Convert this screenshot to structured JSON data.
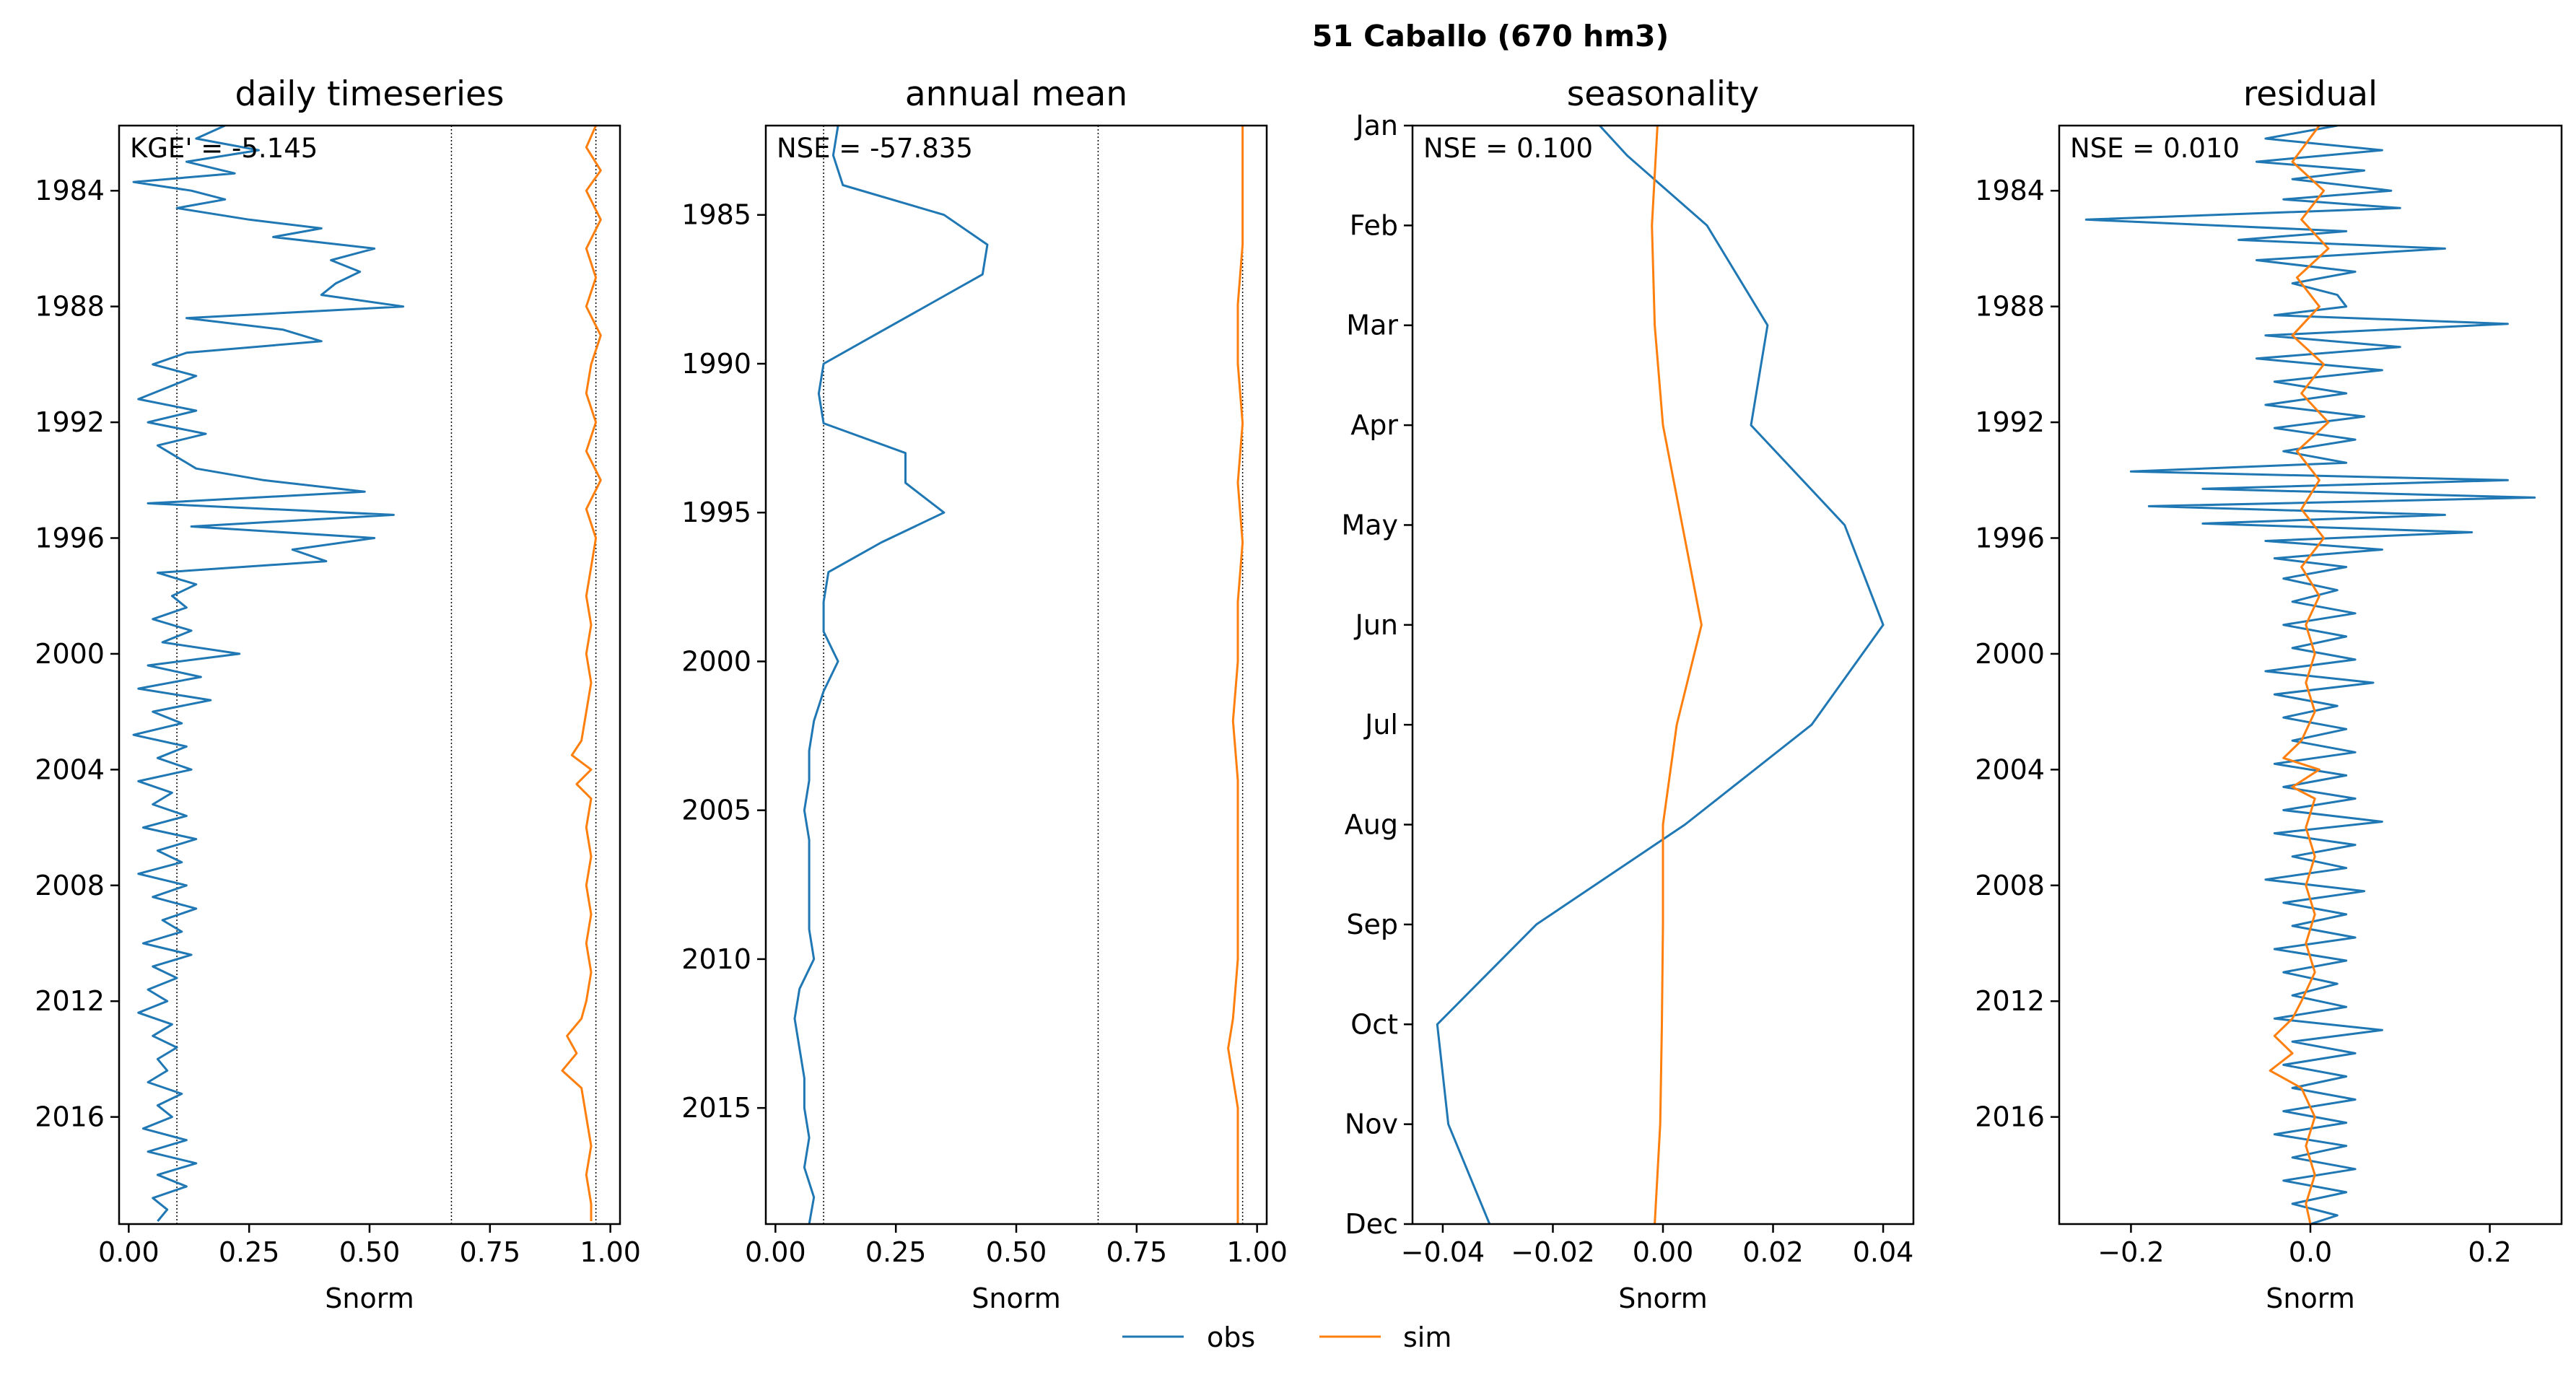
{
  "figure": {
    "title": "51  Caballo (670 hm3)",
    "legend": {
      "placement": "bottom-center",
      "entries": [
        "obs",
        "sim"
      ]
    },
    "colors": {
      "obs": "#1f77b4",
      "sim": "#ff7f0e",
      "ref": "#000000"
    }
  },
  "chart_data": [
    {
      "type": "line",
      "title": "daily timeseries",
      "xlabel": "Snorm",
      "ylabel": "",
      "annotation": "KGE' = -5.145",
      "xlim": [
        -0.02,
        1.02
      ],
      "ylim": [
        1981.75,
        2019.7
      ],
      "y_reversed": true,
      "y_is_date": true,
      "xticks": [
        0.0,
        0.25,
        0.5,
        0.75,
        1.0
      ],
      "xtick_labels": [
        "0.00",
        "0.25",
        "0.50",
        "0.75",
        "1.00"
      ],
      "yticks": [
        1984,
        1988,
        1992,
        1996,
        2000,
        2004,
        2008,
        2012,
        2016
      ],
      "ytick_labels": [
        "1984",
        "1988",
        "1992",
        "1996",
        "2000",
        "2004",
        "2008",
        "2012",
        "2016"
      ],
      "vlines": [
        0.1,
        0.67,
        0.97
      ],
      "series": [
        {
          "name": "obs",
          "y": [
            1981.75,
            1982.2,
            1982.6,
            1983.0,
            1983.4,
            1983.7,
            1984.0,
            1984.3,
            1984.6,
            1985.0,
            1985.3,
            1985.6,
            1986.0,
            1986.4,
            1986.8,
            1987.2,
            1987.6,
            1988.0,
            1988.4,
            1988.8,
            1989.2,
            1989.6,
            1990.0,
            1990.4,
            1990.8,
            1991.2,
            1991.6,
            1992.0,
            1992.4,
            1992.8,
            1993.2,
            1993.6,
            1994.0,
            1994.4,
            1994.8,
            1995.2,
            1995.6,
            1996.0,
            1996.4,
            1996.8,
            1997.2,
            1997.6,
            1998.0,
            1998.4,
            1998.8,
            1999.2,
            1999.6,
            2000.0,
            2000.4,
            2000.8,
            2001.2,
            2001.6,
            2002.0,
            2002.4,
            2002.8,
            2003.2,
            2003.6,
            2004.0,
            2004.4,
            2004.8,
            2005.2,
            2005.6,
            2006.0,
            2006.4,
            2006.8,
            2007.2,
            2007.6,
            2008.0,
            2008.4,
            2008.8,
            2009.2,
            2009.6,
            2010.0,
            2010.4,
            2010.8,
            2011.2,
            2011.6,
            2012.0,
            2012.4,
            2012.8,
            2013.2,
            2013.6,
            2014.0,
            2014.4,
            2014.8,
            2015.2,
            2015.6,
            2016.0,
            2016.4,
            2016.8,
            2017.2,
            2017.6,
            2018.0,
            2018.4,
            2018.8,
            2019.2,
            2019.6
          ],
          "x": [
            0.2,
            0.14,
            0.27,
            0.12,
            0.22,
            0.01,
            0.13,
            0.2,
            0.1,
            0.25,
            0.4,
            0.3,
            0.51,
            0.42,
            0.48,
            0.43,
            0.4,
            0.57,
            0.12,
            0.32,
            0.4,
            0.12,
            0.05,
            0.14,
            0.08,
            0.02,
            0.14,
            0.04,
            0.16,
            0.06,
            0.1,
            0.14,
            0.28,
            0.49,
            0.04,
            0.55,
            0.13,
            0.51,
            0.34,
            0.41,
            0.06,
            0.14,
            0.09,
            0.12,
            0.05,
            0.13,
            0.07,
            0.23,
            0.04,
            0.15,
            0.02,
            0.17,
            0.05,
            0.11,
            0.01,
            0.12,
            0.06,
            0.13,
            0.02,
            0.09,
            0.05,
            0.12,
            0.03,
            0.14,
            0.06,
            0.11,
            0.02,
            0.12,
            0.05,
            0.14,
            0.07,
            0.11,
            0.03,
            0.13,
            0.05,
            0.1,
            0.04,
            0.08,
            0.02,
            0.09,
            0.05,
            0.1,
            0.06,
            0.08,
            0.04,
            0.11,
            0.06,
            0.09,
            0.03,
            0.12,
            0.04,
            0.14,
            0.06,
            0.12,
            0.05,
            0.08,
            0.06
          ]
        },
        {
          "name": "sim",
          "y": [
            1981.75,
            1982.5,
            1983.3,
            1984.0,
            1985.0,
            1986.0,
            1987.0,
            1988.0,
            1989.0,
            1990.0,
            1991.0,
            1992.0,
            1993.0,
            1994.0,
            1995.0,
            1996.0,
            1997.0,
            1998.0,
            1999.0,
            2000.0,
            2001.0,
            2002.0,
            2003.0,
            2003.5,
            2004.0,
            2004.5,
            2005.0,
            2006.0,
            2007.0,
            2008.0,
            2009.0,
            2010.0,
            2011.0,
            2012.0,
            2012.6,
            2013.2,
            2013.8,
            2014.4,
            2015.0,
            2016.0,
            2017.0,
            2018.0,
            2019.0,
            2019.6
          ],
          "x": [
            0.97,
            0.95,
            0.98,
            0.95,
            0.98,
            0.95,
            0.97,
            0.95,
            0.98,
            0.96,
            0.95,
            0.97,
            0.95,
            0.98,
            0.95,
            0.97,
            0.96,
            0.95,
            0.96,
            0.95,
            0.96,
            0.95,
            0.94,
            0.92,
            0.96,
            0.93,
            0.96,
            0.95,
            0.96,
            0.95,
            0.96,
            0.95,
            0.96,
            0.95,
            0.94,
            0.91,
            0.93,
            0.9,
            0.94,
            0.95,
            0.96,
            0.95,
            0.96,
            0.96
          ]
        }
      ]
    },
    {
      "type": "line",
      "title": "annual mean",
      "xlabel": "Snorm",
      "ylabel": "",
      "annotation": "NSE = -57.835",
      "xlim": [
        -0.02,
        1.02
      ],
      "ylim": [
        1982,
        2018.9
      ],
      "y_reversed": true,
      "xticks": [
        0.0,
        0.25,
        0.5,
        0.75,
        1.0
      ],
      "xtick_labels": [
        "0.00",
        "0.25",
        "0.50",
        "0.75",
        "1.00"
      ],
      "yticks": [
        1985,
        1990,
        1995,
        2000,
        2005,
        2010,
        2015
      ],
      "ytick_labels": [
        "1985",
        "1990",
        "1995",
        "2000",
        "2005",
        "2010",
        "2015"
      ],
      "vlines": [
        0.1,
        0.67,
        0.97
      ],
      "series": [
        {
          "name": "obs",
          "y": [
            1982,
            1983,
            1984,
            1985,
            1986,
            1987,
            1988,
            1989,
            1990,
            1991,
            1992,
            1993,
            1994,
            1995,
            1996,
            1997,
            1998,
            1999,
            2000,
            2001,
            2002,
            2003,
            2004,
            2005,
            2006,
            2007,
            2008,
            2009,
            2010,
            2011,
            2012,
            2013,
            2014,
            2015,
            2016,
            2017,
            2018,
            2018.9
          ],
          "x": [
            0.13,
            0.12,
            0.14,
            0.35,
            0.44,
            0.43,
            0.32,
            0.21,
            0.1,
            0.09,
            0.1,
            0.27,
            0.27,
            0.35,
            0.22,
            0.11,
            0.1,
            0.1,
            0.13,
            0.1,
            0.08,
            0.07,
            0.07,
            0.06,
            0.07,
            0.07,
            0.07,
            0.07,
            0.08,
            0.05,
            0.04,
            0.05,
            0.06,
            0.06,
            0.07,
            0.06,
            0.08,
            0.07
          ]
        },
        {
          "name": "sim",
          "y": [
            1982,
            1984,
            1986,
            1988,
            1990,
            1992,
            1994,
            1996,
            1998,
            2000,
            2002,
            2004,
            2006,
            2008,
            2010,
            2012,
            2013,
            2014,
            2015,
            2016,
            2018,
            2018.9
          ],
          "x": [
            0.97,
            0.97,
            0.97,
            0.96,
            0.96,
            0.97,
            0.96,
            0.97,
            0.96,
            0.96,
            0.95,
            0.96,
            0.96,
            0.96,
            0.96,
            0.95,
            0.94,
            0.95,
            0.96,
            0.96,
            0.96,
            0.96
          ]
        }
      ]
    },
    {
      "type": "line",
      "title": "seasonality",
      "xlabel": "Snorm",
      "ylabel": "",
      "annotation": "NSE = 0.100",
      "xlim": [
        -0.0455,
        0.0455
      ],
      "ylim": [
        1,
        12
      ],
      "y_reversed": true,
      "xticks": [
        -0.04,
        -0.02,
        0.0,
        0.02,
        0.04
      ],
      "xtick_labels": [
        "−0.04",
        "−0.02",
        "0.00",
        "0.02",
        "0.04"
      ],
      "yticks": [
        1,
        2,
        3,
        4,
        5,
        6,
        7,
        8,
        9,
        10,
        11,
        12
      ],
      "ytick_labels": [
        "Jan",
        "Feb",
        "Mar",
        "Apr",
        "May",
        "Jun",
        "Jul",
        "Aug",
        "Sep",
        "Oct",
        "Nov",
        "Dec"
      ],
      "series": [
        {
          "name": "obs",
          "y": [
            1,
            1.3,
            2,
            3,
            4,
            5,
            6,
            7,
            8,
            9,
            10,
            11,
            12
          ],
          "x": [
            -0.0115,
            -0.0065,
            0.008,
            0.019,
            0.016,
            0.033,
            0.04,
            0.027,
            0.004,
            -0.023,
            -0.041,
            -0.039,
            -0.0315
          ]
        },
        {
          "name": "sim",
          "y": [
            1,
            2,
            3,
            4,
            5,
            6,
            7,
            8,
            9,
            10,
            11,
            12
          ],
          "x": [
            -0.001,
            -0.002,
            -0.0015,
            0.0,
            0.0035,
            0.007,
            0.0025,
            0.0,
            0.0,
            -0.0002,
            -0.0005,
            -0.0015
          ]
        }
      ]
    },
    {
      "type": "line",
      "title": "residual",
      "xlabel": "Snorm",
      "ylabel": "",
      "annotation": "NSE = 0.010",
      "xlim": [
        -0.28,
        0.28
      ],
      "ylim": [
        1981.75,
        2019.7
      ],
      "y_reversed": true,
      "y_is_date": true,
      "xticks": [
        -0.2,
        0.0,
        0.2
      ],
      "xtick_labels": [
        "−0.2",
        "0.0",
        "0.2"
      ],
      "yticks": [
        1984,
        1988,
        1992,
        1996,
        2000,
        2004,
        2008,
        2012,
        2016
      ],
      "ytick_labels": [
        "1984",
        "1988",
        "1992",
        "1996",
        "2000",
        "2004",
        "2008",
        "2012",
        "2016"
      ],
      "series": [
        {
          "name": "obs",
          "y": [
            1981.75,
            1982.2,
            1982.6,
            1983.0,
            1983.3,
            1983.6,
            1984.0,
            1984.3,
            1984.6,
            1985.0,
            1985.4,
            1985.7,
            1986.0,
            1986.4,
            1986.8,
            1987.2,
            1987.6,
            1988.0,
            1988.3,
            1988.6,
            1989.0,
            1989.4,
            1989.8,
            1990.2,
            1990.6,
            1991.0,
            1991.4,
            1991.8,
            1992.2,
            1992.6,
            1993.0,
            1993.4,
            1993.7,
            1994.0,
            1994.3,
            1994.6,
            1994.9,
            1995.2,
            1995.5,
            1995.8,
            1996.1,
            1996.4,
            1996.7,
            1997.0,
            1997.4,
            1997.8,
            1998.2,
            1998.6,
            1999.0,
            1999.4,
            1999.8,
            2000.2,
            2000.6,
            2001.0,
            2001.4,
            2001.8,
            2002.2,
            2002.6,
            2003.0,
            2003.4,
            2003.8,
            2004.2,
            2004.6,
            2005.0,
            2005.4,
            2005.8,
            2006.2,
            2006.6,
            2007.0,
            2007.4,
            2007.8,
            2008.2,
            2008.6,
            2009.0,
            2009.4,
            2009.8,
            2010.2,
            2010.6,
            2011.0,
            2011.4,
            2011.8,
            2012.2,
            2012.6,
            2013.0,
            2013.4,
            2013.8,
            2014.2,
            2014.6,
            2015.0,
            2015.4,
            2015.8,
            2016.2,
            2016.6,
            2017.0,
            2017.4,
            2017.8,
            2018.2,
            2018.6,
            2019.0,
            2019.4,
            2019.7
          ],
          "x": [
            0.03,
            -0.05,
            0.08,
            -0.06,
            0.06,
            -0.02,
            0.09,
            -0.03,
            0.1,
            -0.25,
            0.04,
            -0.08,
            0.15,
            -0.06,
            0.05,
            -0.02,
            0.03,
            0.04,
            -0.04,
            0.22,
            -0.05,
            0.1,
            -0.06,
            0.08,
            -0.04,
            0.04,
            -0.05,
            0.06,
            -0.04,
            0.05,
            -0.03,
            0.04,
            -0.2,
            0.22,
            -0.12,
            0.25,
            -0.18,
            0.15,
            -0.12,
            0.18,
            -0.05,
            0.08,
            -0.04,
            0.04,
            -0.03,
            0.03,
            -0.02,
            0.05,
            -0.03,
            0.04,
            -0.02,
            0.05,
            -0.05,
            0.07,
            -0.04,
            0.03,
            -0.03,
            0.04,
            -0.02,
            0.05,
            -0.04,
            0.04,
            -0.03,
            0.05,
            -0.03,
            0.08,
            -0.04,
            0.05,
            -0.02,
            0.04,
            -0.05,
            0.06,
            -0.03,
            0.04,
            -0.02,
            0.05,
            -0.04,
            0.04,
            -0.03,
            0.03,
            -0.02,
            0.04,
            -0.04,
            0.08,
            -0.02,
            0.05,
            -0.03,
            0.04,
            -0.02,
            0.05,
            -0.03,
            0.04,
            -0.04,
            0.04,
            -0.02,
            0.05,
            -0.03,
            0.04,
            -0.02,
            0.03,
            0.0
          ]
        },
        {
          "name": "sim",
          "y": [
            1981.75,
            1983.0,
            1984.0,
            1985.0,
            1986.0,
            1987.0,
            1988.0,
            1989.0,
            1990.0,
            1991.0,
            1992.0,
            1993.0,
            1994.0,
            1995.0,
            1996.0,
            1997.0,
            1998.0,
            1999.0,
            2000.0,
            2001.0,
            2002.0,
            2003.0,
            2003.6,
            2004.0,
            2004.6,
            2005.0,
            2006.0,
            2007.0,
            2008.0,
            2009.0,
            2010.0,
            2011.0,
            2012.0,
            2012.6,
            2013.2,
            2013.8,
            2014.4,
            2015.0,
            2016.0,
            2017.0,
            2018.0,
            2019.0,
            2019.7
          ],
          "x": [
            0.01,
            -0.02,
            0.015,
            -0.01,
            0.02,
            -0.015,
            0.01,
            -0.02,
            0.015,
            -0.01,
            0.02,
            -0.015,
            0.01,
            -0.01,
            0.015,
            -0.01,
            0.01,
            -0.005,
            0.005,
            -0.005,
            0.005,
            -0.01,
            -0.03,
            0.01,
            -0.02,
            0.005,
            -0.005,
            0.005,
            -0.005,
            0.005,
            -0.005,
            0.005,
            -0.01,
            -0.02,
            -0.04,
            -0.02,
            -0.045,
            -0.01,
            0.005,
            -0.005,
            0.005,
            -0.005,
            0.0
          ]
        }
      ]
    }
  ]
}
